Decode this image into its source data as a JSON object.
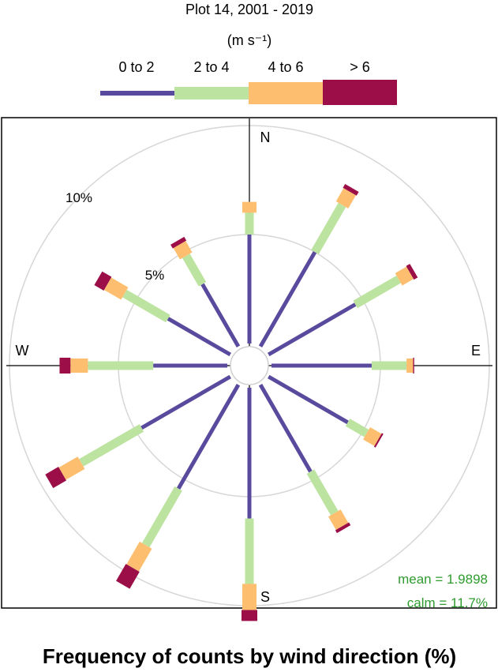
{
  "chart_data": {
    "type": "wind_rose",
    "title": "Plot 14, 2001 - 2019",
    "xlabel": "Frequency of counts by wind direction (%)",
    "legend": {
      "title": "(m s⁻¹)",
      "placement": "top",
      "entries": [
        "0 to 2",
        "2 to 4",
        "4 to 6",
        "> 6"
      ]
    },
    "colors": [
      "#5a4a9e",
      "#bde3a0",
      "#fdbf6f",
      "#9b0e48"
    ],
    "directions": [
      "N",
      "E",
      "S",
      "W"
    ],
    "radial_ticks": [
      "5%",
      "10%"
    ],
    "radial_tick_values": [
      5,
      10
    ],
    "rmax": 11.2,
    "bins": [
      {
        "angle": 0,
        "values": [
          5.0,
          1.0,
          0.5,
          0.0
        ]
      },
      {
        "angle": 30,
        "values": [
          5.0,
          2.5,
          0.7,
          0.2
        ]
      },
      {
        "angle": 60,
        "values": [
          4.6,
          2.3,
          0.6,
          0.2
        ]
      },
      {
        "angle": 90,
        "values": [
          4.6,
          1.6,
          0.3,
          0.05
        ]
      },
      {
        "angle": 120,
        "values": [
          4.2,
          1.0,
          0.6,
          0.08
        ]
      },
      {
        "angle": 150,
        "values": [
          4.6,
          2.2,
          0.7,
          0.15
        ]
      },
      {
        "angle": 180,
        "values": [
          6.0,
          3.0,
          1.2,
          0.5
        ]
      },
      {
        "angle": 210,
        "values": [
          5.5,
          3.0,
          1.2,
          0.9
        ]
      },
      {
        "angle": 240,
        "values": [
          4.7,
          3.2,
          1.0,
          0.7
        ]
      },
      {
        "angle": 270,
        "values": [
          3.4,
          3.0,
          0.8,
          0.5
        ]
      },
      {
        "angle": 300,
        "values": [
          3.3,
          2.3,
          0.9,
          0.5
        ]
      },
      {
        "angle": 330,
        "values": [
          3.3,
          1.5,
          0.6,
          0.2
        ]
      }
    ],
    "stats": {
      "mean": "mean = 1.9898",
      "calm": "calm = 11.7%"
    }
  }
}
